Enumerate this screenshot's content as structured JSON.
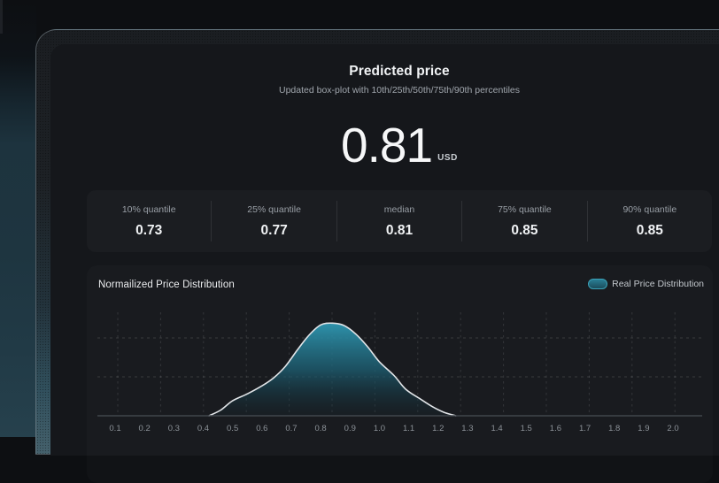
{
  "header": {
    "title": "Predicted price",
    "subtitle": "Updated box-plot with 10th/25th/50th/75th/90th percentiles"
  },
  "price": {
    "value": "0.81",
    "currency": "USD"
  },
  "stats": [
    {
      "label": "10% quantile",
      "value": "0.73"
    },
    {
      "label": "25% quantile",
      "value": "0.77"
    },
    {
      "label": "median",
      "value": "0.81"
    },
    {
      "label": "75% quantile",
      "value": "0.85"
    },
    {
      "label": "90% quantile",
      "value": "0.85"
    }
  ],
  "distribution": {
    "title": "Normailized Price Distribution",
    "legend_label": "Real Price Distribution"
  },
  "colors": {
    "background": "#0d0f12",
    "card": "#15171b",
    "accent_teal": "#2f9ab1",
    "left_glow_bottom": "#26414d",
    "frame_strip_bottom": "#45616c"
  },
  "chart_data": {
    "type": "area",
    "title": "Normailized Price Distribution",
    "xlabel": "",
    "ylabel": "",
    "x_ticks": [
      "0.1",
      "0.2",
      "0.3",
      "0.4",
      "0.5",
      "0.6",
      "0.7",
      "0.8",
      "0.9",
      "1.0",
      "1.1",
      "1.2",
      "1.3",
      "1.4",
      "1.5",
      "1.6",
      "1.7",
      "1.8",
      "1.9",
      "2.0"
    ],
    "xlim": [
      0.04,
      2.1
    ],
    "ylim": [
      0,
      1
    ],
    "grid": "dashed",
    "legend_position": "top-right",
    "legend_swatch": {
      "border": "#3aa2b8",
      "fill_top": "#2a7e95",
      "fill_bottom": "#1b4d5c"
    },
    "series": [
      {
        "name": "Real Price Distribution",
        "x": [
          0.42,
          0.46,
          0.5,
          0.55,
          0.6,
          0.64,
          0.68,
          0.72,
          0.76,
          0.8,
          0.84,
          0.88,
          0.92,
          0.96,
          1.0,
          1.05,
          1.09,
          1.14,
          1.18,
          1.22,
          1.26
        ],
        "y": [
          0,
          0.05,
          0.13,
          0.19,
          0.26,
          0.33,
          0.43,
          0.57,
          0.7,
          0.79,
          0.805,
          0.785,
          0.71,
          0.6,
          0.47,
          0.35,
          0.23,
          0.145,
          0.08,
          0.03,
          0
        ],
        "stroke": "#e2e5e8",
        "fill_stops": [
          {
            "offset": "0%",
            "color": "#2f98b2",
            "opacity": 0.95
          },
          {
            "offset": "50%",
            "color": "#1d5f73",
            "opacity": 0.78
          },
          {
            "offset": "100%",
            "color": "#122b34",
            "opacity": 0.18
          }
        ]
      }
    ]
  }
}
